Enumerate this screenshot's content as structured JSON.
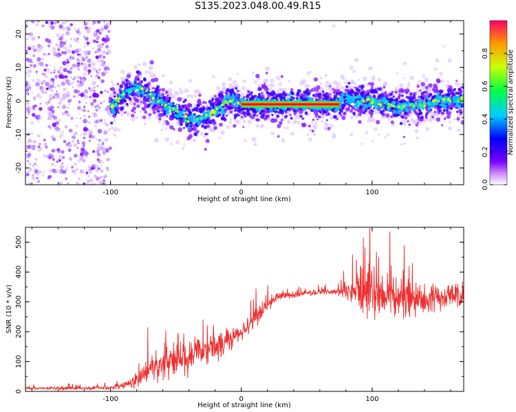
{
  "title": "S135.2023.048.00.49.R15",
  "chart_data": [
    {
      "type": "heatmap",
      "xlabel": "Height of straight line (km)",
      "ylabel": "Frequency (Hz)",
      "xlim": [
        -165,
        170
      ],
      "ylim": [
        -25,
        24
      ],
      "xticks": [
        -100,
        0,
        100
      ],
      "yticks": [
        -20,
        -10,
        0,
        10,
        20
      ],
      "colorbar": {
        "label": "Normalized spectral amplitude",
        "ticks": [
          "0.0",
          "0.2",
          "0.4",
          "0.6",
          "0.8"
        ],
        "range": [
          0,
          1
        ]
      },
      "ridge": {
        "x": [
          -100,
          -90,
          -80,
          -70,
          -60,
          -50,
          -40,
          -30,
          -20,
          -10,
          -5,
          0,
          10,
          20,
          30,
          40,
          50,
          60,
          70,
          75,
          80,
          90,
          100,
          110,
          120,
          130,
          140,
          150,
          160,
          170
        ],
        "freq": [
          -2,
          2,
          4,
          2,
          -1,
          -3,
          -6,
          -5,
          -3,
          0,
          0,
          -1,
          -1,
          -1,
          -1,
          -1,
          -1,
          -1,
          -1,
          -1,
          1,
          0,
          0,
          -1,
          -2,
          -1,
          -1,
          0,
          0,
          0
        ]
      },
      "noise_region": {
        "x_from": -165,
        "x_to": -100
      }
    },
    {
      "type": "line",
      "xlabel": "Height of straight line (km)",
      "ylabel": "SNR (10 * v/v)",
      "xlim": [
        -165,
        170
      ],
      "ylim": [
        0,
        550
      ],
      "xticks": [
        -100,
        0,
        100
      ],
      "yticks": [
        0,
        100,
        200,
        300,
        400,
        500
      ],
      "color": "#ee3030",
      "envelope": {
        "x": [
          -165,
          -100,
          -90,
          -80,
          -70,
          -60,
          -50,
          -40,
          -30,
          -20,
          -10,
          0,
          10,
          20,
          30,
          50,
          70,
          80,
          90,
          100,
          110,
          120,
          140,
          160,
          170
        ],
        "mean": [
          10,
          12,
          20,
          40,
          70,
          100,
          110,
          120,
          140,
          150,
          170,
          200,
          240,
          290,
          320,
          330,
          335,
          340,
          330,
          330,
          320,
          310,
          310,
          320,
          320
        ],
        "noise": [
          4,
          5,
          10,
          20,
          35,
          55,
          60,
          55,
          50,
          45,
          35,
          25,
          30,
          20,
          10,
          8,
          8,
          25,
          60,
          80,
          70,
          50,
          40,
          40,
          40
        ]
      }
    }
  ]
}
